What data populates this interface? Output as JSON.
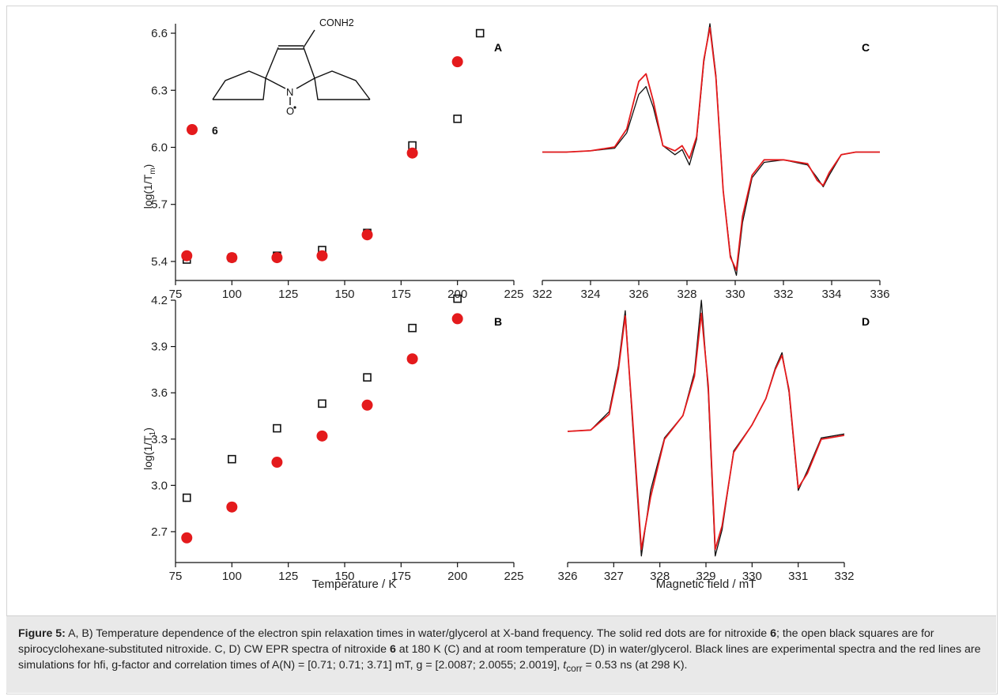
{
  "colors": {
    "series_black": "#111111",
    "series_red": "#e41a1c",
    "caption_bg": "#e9e9e9"
  },
  "chart_data": [
    {
      "panel": "A",
      "type": "scatter",
      "ylabel": "log(1/T",
      "ylabel_sub": "m",
      "ylabel_end": ")",
      "xlim": [
        75,
        225
      ],
      "ylim": [
        5.3,
        6.65
      ],
      "xticks": [
        "75",
        "100",
        "125",
        "150",
        "175",
        "200",
        "225"
      ],
      "yticks": [
        "5.4",
        "5.7",
        "6.0",
        "6.3",
        "6.6"
      ],
      "legend_label": "6",
      "molecule_label": "CONH2",
      "series": [
        {
          "marker": "open-square",
          "color": "#111111",
          "x": [
            80,
            100,
            120,
            140,
            160,
            180,
            200,
            210
          ],
          "y": [
            5.41,
            5.42,
            5.43,
            5.46,
            5.55,
            6.01,
            6.15,
            6.6
          ]
        },
        {
          "name": "6",
          "marker": "filled-circle",
          "color": "#e41a1c",
          "x": [
            80,
            100,
            120,
            140,
            160,
            180,
            200
          ],
          "y": [
            5.43,
            5.42,
            5.42,
            5.43,
            5.54,
            5.97,
            6.45
          ]
        }
      ]
    },
    {
      "panel": "B",
      "type": "scatter",
      "xlabel": "Temperature / K",
      "ylabel": "log(1/T",
      "ylabel_sub": "1",
      "ylabel_end": ")",
      "xlim": [
        75,
        225
      ],
      "ylim": [
        2.5,
        4.2
      ],
      "xticks": [
        "75",
        "100",
        "125",
        "150",
        "175",
        "200",
        "225"
      ],
      "yticks": [
        "2.7",
        "3.0",
        "3.3",
        "3.6",
        "3.9",
        "4.2"
      ],
      "series": [
        {
          "marker": "open-square",
          "color": "#111111",
          "x": [
            80,
            100,
            120,
            140,
            160,
            180,
            200
          ],
          "y": [
            2.92,
            3.17,
            3.37,
            3.53,
            3.7,
            4.02,
            4.21
          ]
        },
        {
          "marker": "filled-circle",
          "color": "#e41a1c",
          "x": [
            80,
            100,
            120,
            140,
            160,
            180,
            200
          ],
          "y": [
            2.66,
            2.86,
            3.15,
            3.32,
            3.52,
            3.82,
            4.08
          ]
        }
      ]
    },
    {
      "panel": "C",
      "type": "line",
      "xlim": [
        322,
        336
      ],
      "ylim": [
        -1.0,
        1.0
      ],
      "xticks": [
        "322",
        "324",
        "326",
        "328",
        "330",
        "332",
        "334",
        "336"
      ],
      "series": [
        {
          "color": "#111111",
          "x": [
            322,
            323,
            324,
            325,
            325.5,
            326,
            326.3,
            326.6,
            327,
            327.5,
            327.8,
            328.1,
            328.4,
            328.7,
            328.95,
            329.2,
            329.5,
            329.8,
            330.05,
            330.3,
            330.7,
            331.2,
            332,
            333,
            333.4,
            333.65,
            333.9,
            334.4,
            335,
            336
          ],
          "y": [
            0,
            0,
            0.01,
            0.03,
            0.15,
            0.45,
            0.51,
            0.35,
            0.05,
            -0.02,
            0.02,
            -0.1,
            0.1,
            0.7,
            1.0,
            0.6,
            -0.3,
            -0.8,
            -0.96,
            -0.55,
            -0.2,
            -0.08,
            -0.06,
            -0.1,
            -0.2,
            -0.27,
            -0.18,
            -0.02,
            0,
            0
          ]
        },
        {
          "color": "#e41a1c",
          "x": [
            322,
            323,
            324,
            325,
            325.5,
            326,
            326.3,
            326.6,
            327,
            327.5,
            327.8,
            328.1,
            328.4,
            328.7,
            328.95,
            329.2,
            329.5,
            329.8,
            330.05,
            330.3,
            330.7,
            331.2,
            332,
            333,
            333.4,
            333.65,
            333.9,
            334.4,
            335,
            336
          ],
          "y": [
            0,
            0,
            0.01,
            0.04,
            0.18,
            0.55,
            0.61,
            0.4,
            0.05,
            0.01,
            0.05,
            -0.05,
            0.12,
            0.72,
            0.97,
            0.58,
            -0.3,
            -0.82,
            -0.92,
            -0.5,
            -0.18,
            -0.06,
            -0.06,
            -0.09,
            -0.22,
            -0.26,
            -0.16,
            -0.02,
            0,
            0
          ]
        }
      ]
    },
    {
      "panel": "D",
      "type": "line",
      "xlabel": "Magnetic field / mT",
      "xlim": [
        326,
        332
      ],
      "ylim": [
        -1.0,
        1.0
      ],
      "xticks": [
        "326",
        "327",
        "328",
        "329",
        "330",
        "331",
        "332"
      ],
      "series": [
        {
          "color": "#111111",
          "x": [
            326,
            326.5,
            326.9,
            327.1,
            327.25,
            327.4,
            327.6,
            327.8,
            328.1,
            328.5,
            328.75,
            328.9,
            329.05,
            329.2,
            329.35,
            329.6,
            330,
            330.3,
            330.5,
            330.65,
            330.8,
            331,
            331.2,
            331.5,
            332
          ],
          "y": [
            0,
            0.01,
            0.15,
            0.5,
            0.92,
            0.1,
            -0.95,
            -0.45,
            -0.05,
            0.12,
            0.45,
            1.0,
            0.3,
            -0.95,
            -0.75,
            -0.15,
            0.05,
            0.25,
            0.48,
            0.6,
            0.3,
            -0.45,
            -0.3,
            -0.05,
            -0.02
          ]
        },
        {
          "color": "#e41a1c",
          "x": [
            326,
            326.5,
            326.9,
            327.1,
            327.25,
            327.4,
            327.6,
            327.8,
            328.1,
            328.5,
            328.75,
            328.9,
            329.05,
            329.2,
            329.35,
            329.6,
            330,
            330.3,
            330.5,
            330.65,
            330.8,
            331,
            331.2,
            331.5,
            332
          ],
          "y": [
            0,
            0.01,
            0.13,
            0.47,
            0.88,
            0.14,
            -0.9,
            -0.5,
            -0.06,
            0.12,
            0.42,
            0.9,
            0.35,
            -0.9,
            -0.72,
            -0.16,
            0.05,
            0.25,
            0.47,
            0.58,
            0.32,
            -0.43,
            -0.32,
            -0.06,
            -0.03
          ]
        }
      ]
    }
  ],
  "caption": {
    "label": "Figure 5:",
    "text_1": " A, B) Temperature dependence of the electron spin relaxation times in water/glycerol at X-band frequency. The solid red dots are for nitroxide ",
    "compound_1": "6",
    "text_2": "; the open black squares are for spirocyclohexane-substituted nitroxide. C, D) CW EPR spectra of nitroxide ",
    "compound_2": "6",
    "text_3": " at 180 K (C) and at room temperature (D) in water/glycerol. Black lines are experimental spectra and the red lines are simulations for hfi, g-factor and correlation times of A(N) = [0.71; 0.71; 3.71] mT, g = [2.0087; 2.0055; 2.0019], ",
    "t_symbol": "t",
    "t_sub": "corr",
    "text_4": " = 0.53 ns (at 298 K)."
  }
}
